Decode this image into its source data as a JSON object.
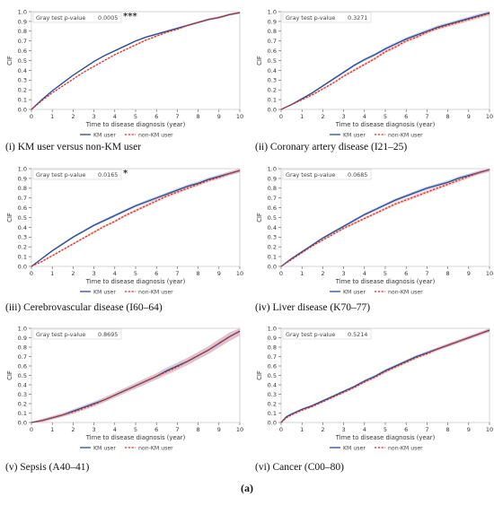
{
  "figure_label": "(a)",
  "colors": {
    "km_user": "#2b4a8e",
    "non_km_user": "#d0322a",
    "ci_km": "#9fb4da",
    "ci_non": "#f2b3b0",
    "axis": "#555555",
    "grid": "#dddddd"
  },
  "chart_data": [
    {
      "type": "line",
      "caption": "(i) KM user versus non-KM user",
      "xlabel": "Time to disease diagnosis (year)",
      "ylabel": "CIF",
      "xlim": [
        0,
        10
      ],
      "ylim": [
        0,
        1.0
      ],
      "xticks": [
        "0",
        "1",
        "2",
        "3",
        "4",
        "5",
        "6",
        "7",
        "8",
        "9",
        "10"
      ],
      "yticks": [
        "0.0",
        "0.1",
        "0.2",
        "0.3",
        "0.4",
        "0.5",
        "0.6",
        "0.7",
        "0.8",
        "0.9",
        "1.0"
      ],
      "pvalue_label": "Gray test p-value",
      "pvalue": "0.0005",
      "significance": "***",
      "legend": [
        "KM user",
        "non-KM user"
      ],
      "band": "narrow",
      "x": [
        0,
        0.5,
        1,
        1.5,
        2,
        2.5,
        3,
        3.5,
        4,
        4.5,
        5,
        5.5,
        6,
        6.5,
        7,
        7.5,
        8,
        8.5,
        9,
        9.5,
        10
      ],
      "series": [
        {
          "name": "KM user",
          "values": [
            0,
            0.1,
            0.19,
            0.27,
            0.35,
            0.42,
            0.49,
            0.55,
            0.6,
            0.65,
            0.7,
            0.74,
            0.77,
            0.8,
            0.83,
            0.86,
            0.89,
            0.92,
            0.94,
            0.97,
            0.99
          ]
        },
        {
          "name": "non-KM user",
          "values": [
            0,
            0.09,
            0.17,
            0.24,
            0.31,
            0.38,
            0.44,
            0.5,
            0.56,
            0.61,
            0.66,
            0.71,
            0.75,
            0.79,
            0.82,
            0.86,
            0.89,
            0.92,
            0.94,
            0.97,
            0.99
          ]
        }
      ]
    },
    {
      "type": "line",
      "caption": "(ii) Coronary artery disease (I21–25)",
      "xlabel": "Time to disease diagnosis (year)",
      "ylabel": "CIF",
      "xlim": [
        0,
        10
      ],
      "ylim": [
        0,
        1.0
      ],
      "xticks": [
        "0",
        "1",
        "2",
        "3",
        "4",
        "5",
        "6",
        "7",
        "8",
        "9",
        "10"
      ],
      "yticks": [
        "0.0",
        "0.1",
        "0.2",
        "0.3",
        "0.4",
        "0.5",
        "0.6",
        "0.7",
        "0.8",
        "0.9",
        "1.0"
      ],
      "pvalue_label": "Gray test p-value",
      "pvalue": "0.3271",
      "significance": "",
      "legend": [
        "KM user",
        "non-KM user"
      ],
      "band": "medium",
      "x": [
        0,
        0.5,
        1,
        1.5,
        2,
        2.5,
        3,
        3.5,
        4,
        4.5,
        5,
        5.5,
        6,
        6.5,
        7,
        7.5,
        8,
        8.5,
        9,
        9.5,
        10
      ],
      "series": [
        {
          "name": "KM user",
          "values": [
            0,
            0.05,
            0.11,
            0.17,
            0.24,
            0.31,
            0.38,
            0.45,
            0.51,
            0.56,
            0.62,
            0.67,
            0.72,
            0.76,
            0.8,
            0.84,
            0.87,
            0.9,
            0.93,
            0.96,
            0.99
          ]
        },
        {
          "name": "non-KM user",
          "values": [
            0,
            0.05,
            0.1,
            0.15,
            0.21,
            0.27,
            0.34,
            0.4,
            0.46,
            0.52,
            0.59,
            0.64,
            0.7,
            0.74,
            0.79,
            0.83,
            0.86,
            0.89,
            0.92,
            0.95,
            0.98
          ]
        }
      ]
    },
    {
      "type": "line",
      "caption": "(iii) Cerebrovascular disease (I60–64)",
      "xlabel": "Time to disease diagnosis (year)",
      "ylabel": "CIF",
      "xlim": [
        0,
        10
      ],
      "ylim": [
        0,
        1.0
      ],
      "xticks": [
        "0",
        "1",
        "2",
        "3",
        "4",
        "5",
        "6",
        "7",
        "8",
        "9",
        "10"
      ],
      "yticks": [
        "0.0",
        "0.1",
        "0.2",
        "0.3",
        "0.4",
        "0.5",
        "0.6",
        "0.7",
        "0.8",
        "0.9",
        "1.0"
      ],
      "pvalue_label": "Gray test p-value",
      "pvalue": "0.0165",
      "significance": "*",
      "legend": [
        "KM user",
        "non-KM user"
      ],
      "band": "medium",
      "x": [
        0,
        0.5,
        1,
        1.5,
        2,
        2.5,
        3,
        3.5,
        4,
        4.5,
        5,
        5.5,
        6,
        6.5,
        7,
        7.5,
        8,
        8.5,
        9,
        9.5,
        10
      ],
      "series": [
        {
          "name": "KM user",
          "values": [
            0,
            0.08,
            0.16,
            0.23,
            0.3,
            0.36,
            0.42,
            0.47,
            0.52,
            0.57,
            0.62,
            0.66,
            0.7,
            0.74,
            0.78,
            0.82,
            0.85,
            0.89,
            0.92,
            0.95,
            0.98
          ]
        },
        {
          "name": "non-KM user",
          "values": [
            0,
            0.05,
            0.11,
            0.17,
            0.23,
            0.29,
            0.35,
            0.41,
            0.46,
            0.52,
            0.57,
            0.62,
            0.67,
            0.72,
            0.76,
            0.8,
            0.84,
            0.88,
            0.91,
            0.95,
            0.98
          ]
        }
      ]
    },
    {
      "type": "line",
      "caption": "(iv) Liver disease (K70–77)",
      "xlabel": "Time to disease diagnosis (year)",
      "ylabel": "CIF",
      "xlim": [
        0,
        10
      ],
      "ylim": [
        0,
        1.0
      ],
      "xticks": [
        "0",
        "1",
        "2",
        "3",
        "4",
        "5",
        "6",
        "7",
        "8",
        "9",
        "10"
      ],
      "yticks": [
        "0.0",
        "0.1",
        "0.2",
        "0.3",
        "0.4",
        "0.5",
        "0.6",
        "0.7",
        "0.8",
        "0.9",
        "1.0"
      ],
      "pvalue_label": "Gray test p-value",
      "pvalue": "0.0685",
      "significance": "",
      "legend": [
        "KM user",
        "non-KM user"
      ],
      "band": "medium",
      "x": [
        0,
        0.5,
        1,
        1.5,
        2,
        2.5,
        3,
        3.5,
        4,
        4.5,
        5,
        5.5,
        6,
        6.5,
        7,
        7.5,
        8,
        8.5,
        9,
        9.5,
        10
      ],
      "series": [
        {
          "name": "KM user",
          "values": [
            0,
            0.08,
            0.15,
            0.22,
            0.29,
            0.35,
            0.41,
            0.47,
            0.53,
            0.58,
            0.63,
            0.68,
            0.72,
            0.76,
            0.8,
            0.83,
            0.86,
            0.9,
            0.93,
            0.96,
            0.99
          ]
        },
        {
          "name": "non-KM user",
          "values": [
            0,
            0.07,
            0.14,
            0.21,
            0.27,
            0.33,
            0.39,
            0.44,
            0.49,
            0.54,
            0.59,
            0.64,
            0.68,
            0.72,
            0.76,
            0.8,
            0.84,
            0.88,
            0.92,
            0.96,
            0.99
          ]
        }
      ]
    },
    {
      "type": "line",
      "caption": "(v) Sepsis (A40–41)",
      "xlabel": "Time to disease diagnosis (year)",
      "ylabel": "CIF",
      "xlim": [
        0,
        10
      ],
      "ylim": [
        0,
        1.0
      ],
      "xticks": [
        "0",
        "1",
        "2",
        "3",
        "4",
        "5",
        "6",
        "7",
        "8",
        "9",
        "10"
      ],
      "yticks": [
        "0.0",
        "0.1",
        "0.2",
        "0.3",
        "0.4",
        "0.5",
        "0.6",
        "0.7",
        "0.8",
        "0.9",
        "1.0"
      ],
      "pvalue_label": "Gray test p-value",
      "pvalue": "0.8695",
      "significance": "",
      "legend": [
        "KM user",
        "non-KM user"
      ],
      "band": "wide",
      "x": [
        0,
        0.5,
        1,
        1.5,
        2,
        2.5,
        3,
        3.5,
        4,
        4.5,
        5,
        5.5,
        6,
        6.5,
        7,
        7.5,
        8,
        8.5,
        9,
        9.5,
        10
      ],
      "series": [
        {
          "name": "KM user",
          "values": [
            0,
            0.02,
            0.05,
            0.08,
            0.12,
            0.16,
            0.2,
            0.24,
            0.29,
            0.34,
            0.39,
            0.44,
            0.49,
            0.55,
            0.6,
            0.65,
            0.71,
            0.77,
            0.84,
            0.91,
            0.97
          ]
        },
        {
          "name": "non-KM user",
          "values": [
            0,
            0.02,
            0.05,
            0.08,
            0.11,
            0.15,
            0.19,
            0.24,
            0.29,
            0.34,
            0.39,
            0.44,
            0.49,
            0.54,
            0.59,
            0.65,
            0.71,
            0.77,
            0.84,
            0.91,
            0.97
          ]
        }
      ]
    },
    {
      "type": "line",
      "caption": "(vi) Cancer (C00–80)",
      "xlabel": "Time to disease diagnosis (year)",
      "ylabel": "CIF",
      "xlim": [
        0,
        10
      ],
      "ylim": [
        0,
        1.0
      ],
      "xticks": [
        "0",
        "1",
        "2",
        "3",
        "4",
        "5",
        "6",
        "7",
        "8",
        "9",
        "10"
      ],
      "yticks": [
        "0.0",
        "0.1",
        "0.2",
        "0.3",
        "0.4",
        "0.5",
        "0.6",
        "0.7",
        "0.8",
        "0.9",
        "1.0"
      ],
      "pvalue_label": "Gray test p-value",
      "pvalue": "0.5214",
      "significance": "",
      "legend": [
        "KM user",
        "non-KM user"
      ],
      "band": "medium",
      "x": [
        0,
        0.25,
        0.5,
        1,
        1.5,
        2,
        2.5,
        3,
        3.5,
        4,
        4.5,
        5,
        5.5,
        6,
        6.5,
        7,
        7.5,
        8,
        8.5,
        9,
        9.5,
        10
      ],
      "series": [
        {
          "name": "KM user",
          "values": [
            0,
            0.06,
            0.09,
            0.14,
            0.18,
            0.23,
            0.28,
            0.33,
            0.38,
            0.44,
            0.49,
            0.55,
            0.6,
            0.65,
            0.7,
            0.74,
            0.78,
            0.82,
            0.86,
            0.9,
            0.94,
            0.98
          ]
        },
        {
          "name": "non-KM user",
          "values": [
            0,
            0.05,
            0.08,
            0.13,
            0.17,
            0.22,
            0.27,
            0.32,
            0.37,
            0.43,
            0.48,
            0.54,
            0.59,
            0.64,
            0.69,
            0.73,
            0.78,
            0.82,
            0.86,
            0.9,
            0.94,
            0.98
          ]
        }
      ]
    }
  ]
}
